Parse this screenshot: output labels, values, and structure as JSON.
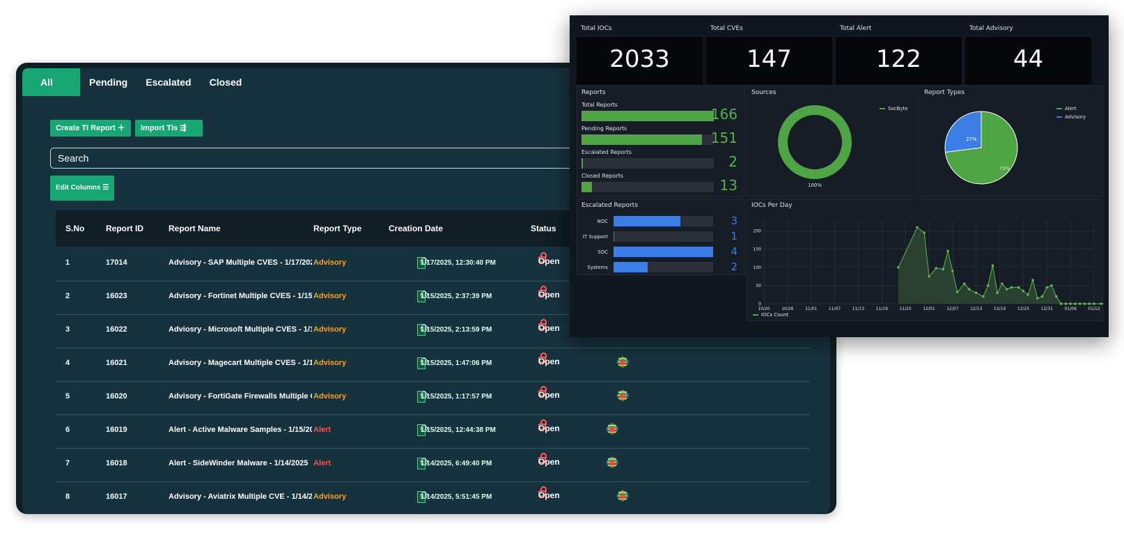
{
  "tabs": [
    "All",
    "Pending",
    "Escalated",
    "Closed"
  ],
  "buttons": {
    "create": "Create TI Report ＋",
    "import": "Import TIs ⇶",
    "edit_columns": "Edit Columns ☰"
  },
  "search": {
    "placeholder": "Search"
  },
  "table": {
    "headers": [
      "S.No",
      "Report ID",
      "Report Name",
      "Report Type",
      "Creation Date",
      "Status"
    ],
    "rows": [
      {
        "sno": "1",
        "id": "17014",
        "name": "Advisory - SAP Multiple CVES - 1/17/202",
        "type": "Advisory",
        "date": "1/17/2025, 12:30:40 PM",
        "status": "Open"
      },
      {
        "sno": "2",
        "id": "16023",
        "name": "Advisory - Fortinet Multiple CVES - 1/15/.",
        "type": "Advisory",
        "date": "1/15/2025, 2:37:39 PM",
        "status": "Open"
      },
      {
        "sno": "3",
        "id": "16022",
        "name": "Adviosry - Microsoft Multiple CVES - 1/1!",
        "type": "Advisory",
        "date": "1/15/2025, 2:13:59 PM",
        "status": "Open"
      },
      {
        "sno": "4",
        "id": "16021",
        "name": "Advisory - Magecart Multiple CVES - 1/1!",
        "type": "Advisory",
        "date": "1/15/2025, 1:47:06 PM",
        "status": "Open"
      },
      {
        "sno": "5",
        "id": "16020",
        "name": "Advisory - FortiGate Firewalls Multiple C\\",
        "type": "Advisory",
        "date": "1/15/2025, 1:17:57 PM",
        "status": "Open"
      },
      {
        "sno": "6",
        "id": "16019",
        "name": "Alert - Active Malware Samples - 1/15/20",
        "type": "Alert",
        "date": "1/15/2025, 12:44:38 PM",
        "status": "Open"
      },
      {
        "sno": "7",
        "id": "16018",
        "name": "Alert - SideWinder Malware - 1/14/2025",
        "type": "Alert",
        "date": "1/14/2025, 6:49:40 PM",
        "status": "Open"
      },
      {
        "sno": "8",
        "id": "16017",
        "name": "Advisory - Aviatrix Multiple CVE - 1/14/2(",
        "type": "Advisory",
        "date": "1/14/2025, 5:51:45 PM",
        "status": "Open"
      }
    ]
  },
  "dashboard": {
    "stats": [
      {
        "label": "Total IOCs",
        "value": "2033"
      },
      {
        "label": "Total CVEs",
        "value": "147"
      },
      {
        "label": "Total Alert",
        "value": "122"
      },
      {
        "label": "Total Advisory",
        "value": "44"
      }
    ],
    "reports_title": "Reports",
    "reports": [
      {
        "label": "Total Reports",
        "value": "166",
        "fraction": 1.0
      },
      {
        "label": "Pending Reports",
        "value": "151",
        "fraction": 0.91
      },
      {
        "label": "Escalated Reports",
        "value": "2",
        "fraction": 0.012
      },
      {
        "label": "Closed Reports",
        "value": "13",
        "fraction": 0.078
      }
    ],
    "sources_title": "Sources",
    "sources_legend": "SocByte",
    "sources_pct": "100%",
    "types_title": "Report Types",
    "types_legend": [
      "Alert",
      "Advisory"
    ],
    "types_pct": {
      "alert": "73%",
      "advisory": "27%"
    },
    "escalated_title": "Escalated Reports",
    "escalated": [
      {
        "label": "NOC",
        "value": "3",
        "fraction": 0.67
      },
      {
        "label": "IT Support",
        "value": "1",
        "fraction": 0.01
      },
      {
        "label": "SOC",
        "value": "4",
        "fraction": 1.0
      },
      {
        "label": "Systems",
        "value": "2",
        "fraction": 0.34
      }
    ],
    "iocs_title": "IOCs Per Day",
    "iocs_legend": "IOCs Count"
  },
  "colors": {
    "green": "#18a574",
    "advisory": "#ff9f1a",
    "alert": "#ff4d4d",
    "bar_green": "#4fa443",
    "bar_blue": "#3b7ee6"
  },
  "chart_data": [
    {
      "type": "area",
      "title": "IOCs Per Day",
      "series": [
        {
          "name": "IOCs Count"
        }
      ],
      "x_ticks": [
        "10/20",
        "10/26",
        "11/01",
        "11/07",
        "11/13",
        "11/19",
        "11/25",
        "12/01",
        "12/07",
        "12/13",
        "12/19",
        "12/25",
        "12/31",
        "01/06",
        "01/12"
      ],
      "y_ticks": [
        "0",
        "50",
        "100",
        "150",
        "200"
      ],
      "ylim": [
        0,
        230
      ],
      "x": [
        0.0,
        1.0,
        2.0,
        5.7,
        6.5,
        6.8,
        7.0,
        7.3,
        7.6,
        7.8,
        8.0,
        8.2,
        8.5,
        8.7,
        9.0,
        9.3,
        9.5,
        9.7,
        9.9,
        10.1,
        10.3,
        10.5,
        10.8,
        11.0,
        11.2,
        11.4,
        11.6,
        11.8,
        12.0,
        12.2,
        12.4,
        12.6,
        12.8,
        13.0,
        13.2,
        13.4,
        13.6,
        13.8,
        14.0,
        14.3,
        14.5,
        14.7
      ],
      "y": [
        80,
        45,
        65,
        100,
        210,
        195,
        75,
        98,
        95,
        145,
        90,
        32,
        55,
        40,
        30,
        20,
        50,
        105,
        30,
        55,
        40,
        45,
        45,
        35,
        25,
        65,
        15,
        20,
        45,
        50,
        20,
        0,
        0,
        0,
        0,
        0,
        0,
        0,
        0,
        0,
        0,
        0
      ],
      "legend": "bottom-left",
      "grid": true
    },
    {
      "type": "pie",
      "title": "Report Types",
      "labels": [
        "Alert",
        "Advisory"
      ],
      "values": [
        73,
        27
      ]
    },
    {
      "type": "pie",
      "title": "Sources",
      "labels": [
        "SocByte"
      ],
      "values": [
        100
      ]
    }
  ]
}
